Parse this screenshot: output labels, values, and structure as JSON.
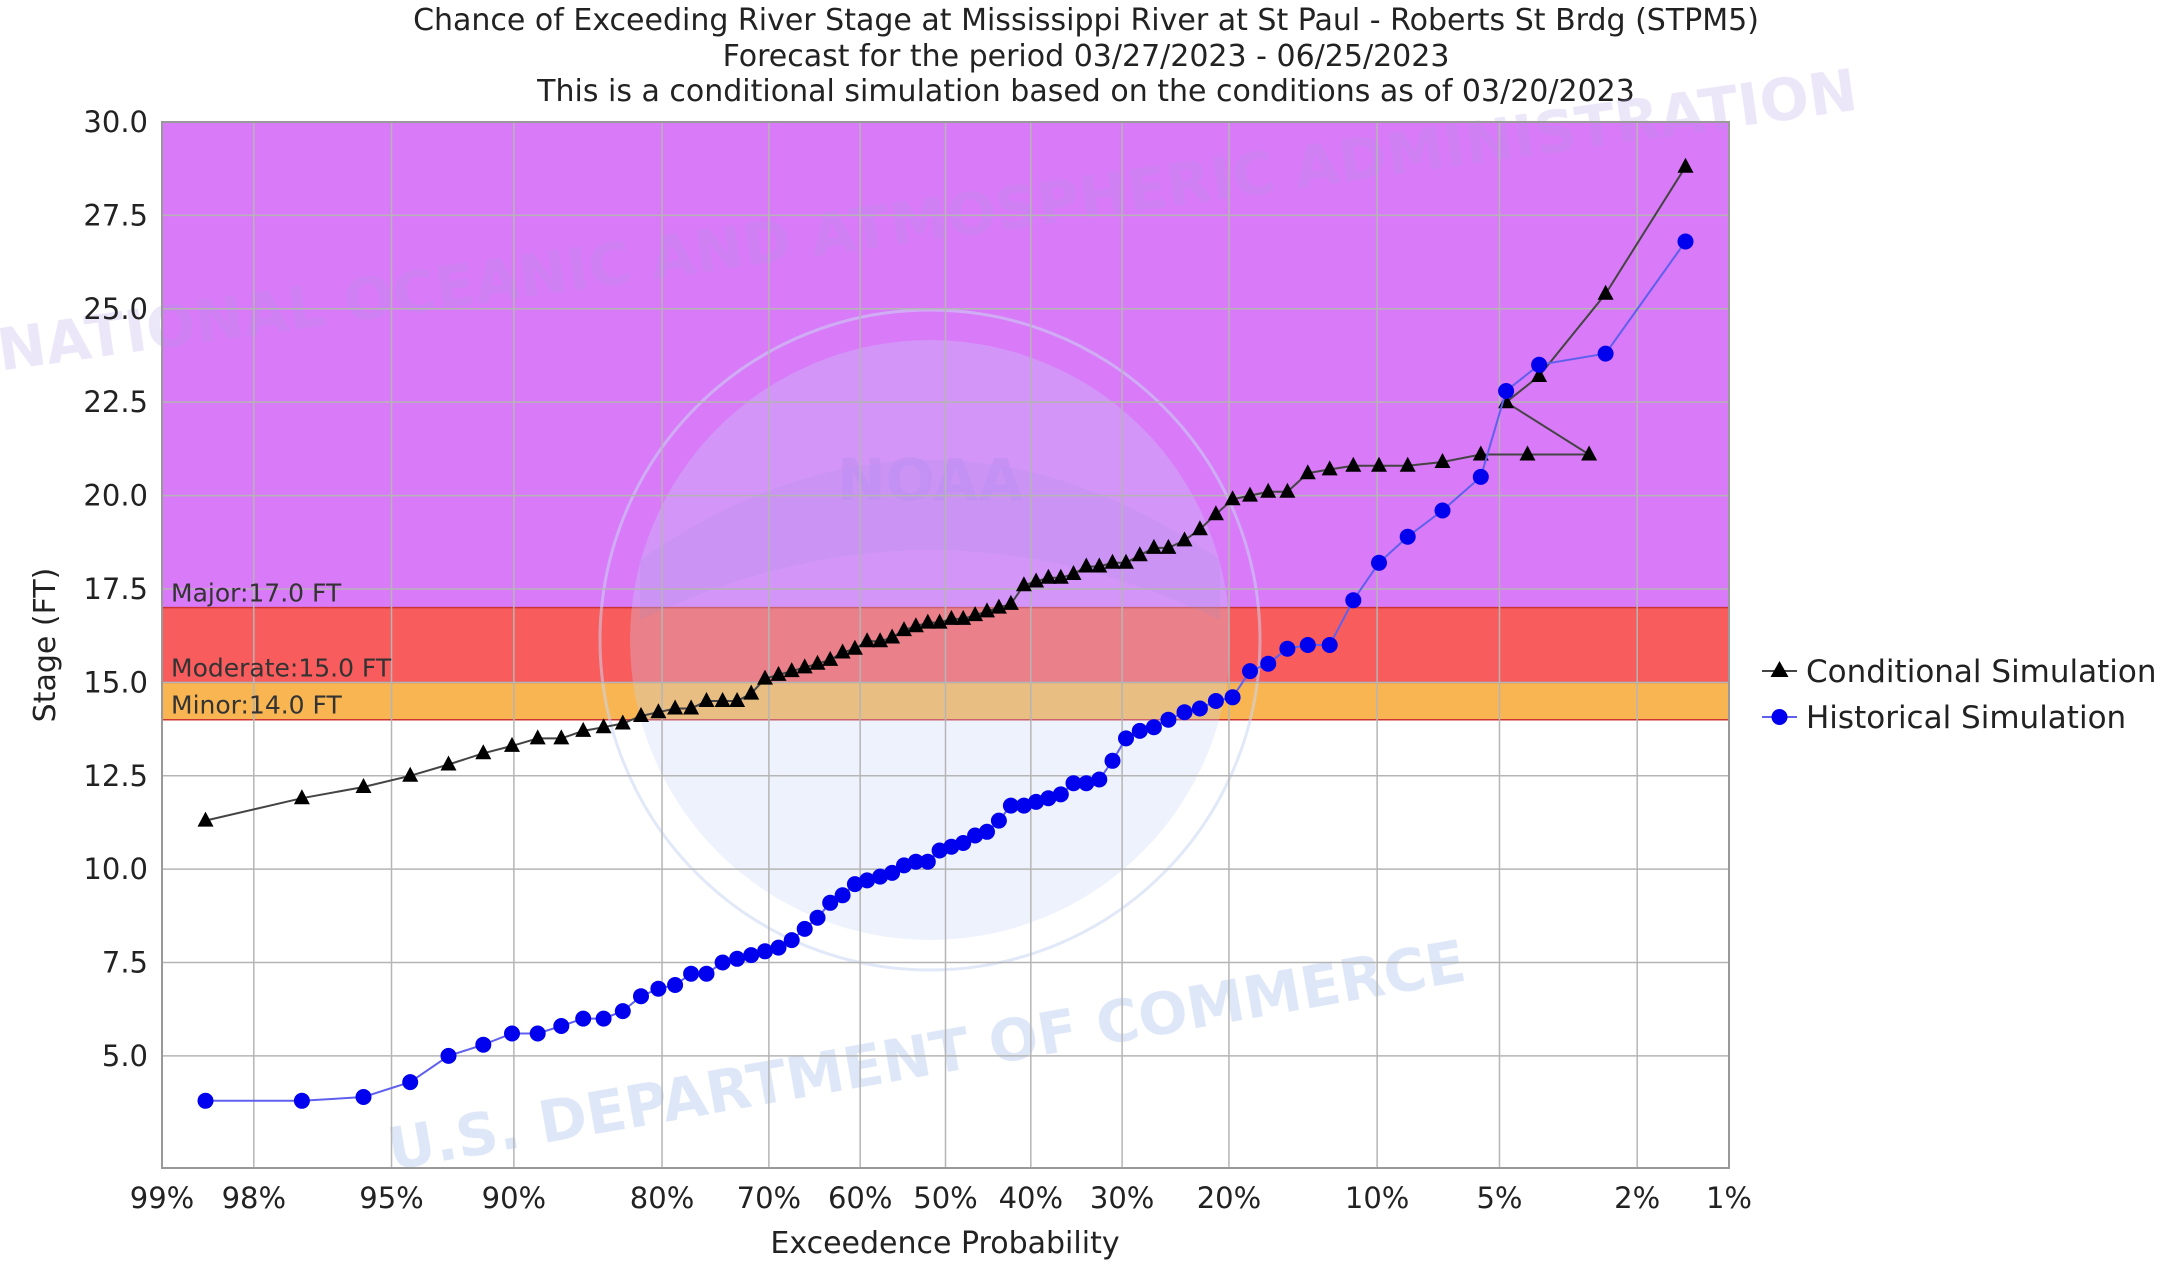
{
  "titles": [
    "Chance of Exceeding River Stage at Mississippi River at St Paul - Roberts St Brdg (STPM5)",
    "Forecast for the period 03/27/2023 - 06/25/2023",
    "This is a conditional simulation based on the conditions as of 03/20/2023"
  ],
  "watermark": {
    "ring_text_top": "NATIONAL OCEANIC AND ATMOSPHERIC ADMINISTRATION",
    "ring_text_bottom": "U.S. DEPARTMENT OF COMMERCE",
    "logo_text": "NOAA"
  },
  "chart_data": {
    "type": "line",
    "title": "Chance of Exceeding River Stage at Mississippi River at St Paul - Roberts St Brdg (STPM5)",
    "subtitle": [
      "Forecast for the period 03/27/2023 - 06/25/2023",
      "This is a conditional simulation based on the conditions as of 03/20/2023"
    ],
    "xlabel": "Exceedence Probability",
    "ylabel": "Stage (FT)",
    "x_scale": "normal-probability (percent, decreasing left to right)",
    "xlim": [
      99,
      1
    ],
    "ylim": [
      2.0,
      30.0
    ],
    "grid": true,
    "legend_position": "right",
    "x_ticks": [
      {
        "value": 99,
        "label": "99%"
      },
      {
        "value": 98,
        "label": "98%"
      },
      {
        "value": 95,
        "label": "95%"
      },
      {
        "value": 90,
        "label": "90%"
      },
      {
        "value": 80,
        "label": "80%"
      },
      {
        "value": 70,
        "label": "70%"
      },
      {
        "value": 60,
        "label": "60%"
      },
      {
        "value": 50,
        "label": "50%"
      },
      {
        "value": 40,
        "label": "40%"
      },
      {
        "value": 30,
        "label": "30%"
      },
      {
        "value": 20,
        "label": "20%"
      },
      {
        "value": 10,
        "label": "10%"
      },
      {
        "value": 5,
        "label": "5%"
      },
      {
        "value": 2,
        "label": "2%"
      },
      {
        "value": 1,
        "label": "1%"
      }
    ],
    "y_ticks": [
      {
        "value": 5.0,
        "label": "5.0"
      },
      {
        "value": 7.5,
        "label": "7.5"
      },
      {
        "value": 10.0,
        "label": "10.0"
      },
      {
        "value": 12.5,
        "label": "12.5"
      },
      {
        "value": 15.0,
        "label": "15.0"
      },
      {
        "value": 17.5,
        "label": "17.5"
      },
      {
        "value": 20.0,
        "label": "20.0"
      },
      {
        "value": 22.5,
        "label": "22.5"
      },
      {
        "value": 25.0,
        "label": "25.0"
      },
      {
        "value": 27.5,
        "label": "27.5"
      },
      {
        "value": 30.0,
        "label": "30.0"
      }
    ],
    "flood_zones": [
      {
        "name": "Minor",
        "label": "Minor:14.0 FT",
        "from": 14.0,
        "to": 15.0,
        "color": "#f8b552"
      },
      {
        "name": "Moderate",
        "label": "Moderate:15.0 FT",
        "from": 15.0,
        "to": 17.0,
        "color": "#f95c5c"
      },
      {
        "name": "Major",
        "label": "Major:17.0 FT",
        "from": 17.0,
        "to": 30.0,
        "color": "#d97af8"
      }
    ],
    "series": [
      {
        "name": "Conditional Simulation",
        "marker": "triangle",
        "color": "#000000",
        "line_color": "#444444",
        "points": [
          [
            98.6,
            11.3
          ],
          [
            97.2,
            11.9
          ],
          [
            95.8,
            12.2
          ],
          [
            94.4,
            12.5
          ],
          [
            93.0,
            12.8
          ],
          [
            91.5,
            13.1
          ],
          [
            90.1,
            13.3
          ],
          [
            88.7,
            13.5
          ],
          [
            87.3,
            13.5
          ],
          [
            85.9,
            13.7
          ],
          [
            84.5,
            13.8
          ],
          [
            83.1,
            13.9
          ],
          [
            81.7,
            14.1
          ],
          [
            80.3,
            14.2
          ],
          [
            78.9,
            14.3
          ],
          [
            77.5,
            14.3
          ],
          [
            76.1,
            14.5
          ],
          [
            74.6,
            14.5
          ],
          [
            73.2,
            14.5
          ],
          [
            71.8,
            14.7
          ],
          [
            70.4,
            15.1
          ],
          [
            69.0,
            15.2
          ],
          [
            67.6,
            15.3
          ],
          [
            66.2,
            15.4
          ],
          [
            64.8,
            15.5
          ],
          [
            63.4,
            15.6
          ],
          [
            62.0,
            15.8
          ],
          [
            60.6,
            15.9
          ],
          [
            59.2,
            16.1
          ],
          [
            57.7,
            16.1
          ],
          [
            56.3,
            16.2
          ],
          [
            54.9,
            16.4
          ],
          [
            53.5,
            16.5
          ],
          [
            52.1,
            16.6
          ],
          [
            50.7,
            16.6
          ],
          [
            49.3,
            16.7
          ],
          [
            47.9,
            16.7
          ],
          [
            46.5,
            16.8
          ],
          [
            45.1,
            16.9
          ],
          [
            43.7,
            17.0
          ],
          [
            42.3,
            17.1
          ],
          [
            40.8,
            17.6
          ],
          [
            39.4,
            17.7
          ],
          [
            38.0,
            17.8
          ],
          [
            36.6,
            17.8
          ],
          [
            35.2,
            17.9
          ],
          [
            33.8,
            18.1
          ],
          [
            32.4,
            18.1
          ],
          [
            31.0,
            18.2
          ],
          [
            29.6,
            18.2
          ],
          [
            28.2,
            18.4
          ],
          [
            26.8,
            18.6
          ],
          [
            25.4,
            18.6
          ],
          [
            23.9,
            18.8
          ],
          [
            22.5,
            19.1
          ],
          [
            21.1,
            19.5
          ],
          [
            19.7,
            19.9
          ],
          [
            18.3,
            20.0
          ],
          [
            16.9,
            20.1
          ],
          [
            15.5,
            20.1
          ],
          [
            14.1,
            20.6
          ],
          [
            12.7,
            20.7
          ],
          [
            11.3,
            20.8
          ],
          [
            9.9,
            20.8
          ],
          [
            8.5,
            20.8
          ],
          [
            7.0,
            20.9
          ],
          [
            5.6,
            21.1
          ],
          [
            4.2,
            21.1
          ],
          [
            2.8,
            21.1
          ],
          [
            4.8,
            22.5
          ],
          [
            3.9,
            23.2
          ],
          [
            2.5,
            25.4
          ],
          [
            1.4,
            28.8
          ]
        ]
      },
      {
        "name": "Historical Simulation",
        "marker": "circle",
        "color": "#0000ee",
        "line_color": "#6060ee",
        "points": [
          [
            98.6,
            3.8
          ],
          [
            97.2,
            3.8
          ],
          [
            95.8,
            3.9
          ],
          [
            94.4,
            4.3
          ],
          [
            93.0,
            5.0
          ],
          [
            91.5,
            5.3
          ],
          [
            90.1,
            5.6
          ],
          [
            88.7,
            5.6
          ],
          [
            87.3,
            5.8
          ],
          [
            85.9,
            6.0
          ],
          [
            84.5,
            6.0
          ],
          [
            83.1,
            6.2
          ],
          [
            81.7,
            6.6
          ],
          [
            80.3,
            6.8
          ],
          [
            78.9,
            6.9
          ],
          [
            77.5,
            7.2
          ],
          [
            76.1,
            7.2
          ],
          [
            74.6,
            7.5
          ],
          [
            73.2,
            7.6
          ],
          [
            71.8,
            7.7
          ],
          [
            70.4,
            7.8
          ],
          [
            69.0,
            7.9
          ],
          [
            67.6,
            8.1
          ],
          [
            66.2,
            8.4
          ],
          [
            64.8,
            8.7
          ],
          [
            63.4,
            9.1
          ],
          [
            62.0,
            9.3
          ],
          [
            60.6,
            9.6
          ],
          [
            59.2,
            9.7
          ],
          [
            57.7,
            9.8
          ],
          [
            56.3,
            9.9
          ],
          [
            54.9,
            10.1
          ],
          [
            53.5,
            10.2
          ],
          [
            52.1,
            10.2
          ],
          [
            50.7,
            10.5
          ],
          [
            49.3,
            10.6
          ],
          [
            47.9,
            10.7
          ],
          [
            46.5,
            10.9
          ],
          [
            45.1,
            11.0
          ],
          [
            43.7,
            11.3
          ],
          [
            42.3,
            11.7
          ],
          [
            40.8,
            11.7
          ],
          [
            39.4,
            11.8
          ],
          [
            38.0,
            11.9
          ],
          [
            36.6,
            12.0
          ],
          [
            35.2,
            12.3
          ],
          [
            33.8,
            12.3
          ],
          [
            32.4,
            12.4
          ],
          [
            31.0,
            12.9
          ],
          [
            29.6,
            13.5
          ],
          [
            28.2,
            13.7
          ],
          [
            26.8,
            13.8
          ],
          [
            25.4,
            14.0
          ],
          [
            23.9,
            14.2
          ],
          [
            22.5,
            14.3
          ],
          [
            21.1,
            14.5
          ],
          [
            19.7,
            14.6
          ],
          [
            18.3,
            15.3
          ],
          [
            16.9,
            15.5
          ],
          [
            15.5,
            15.9
          ],
          [
            14.1,
            16.0
          ],
          [
            12.7,
            16.0
          ],
          [
            11.3,
            17.2
          ],
          [
            9.9,
            18.2
          ],
          [
            8.5,
            18.9
          ],
          [
            7.0,
            19.6
          ],
          [
            5.6,
            20.5
          ],
          [
            4.8,
            22.8
          ],
          [
            3.9,
            23.5
          ],
          [
            2.5,
            23.8
          ],
          [
            1.4,
            26.8
          ]
        ]
      }
    ]
  },
  "colors": {
    "major": "#d97af8",
    "moderate": "#f95c5c",
    "minor": "#f8b552",
    "grid": "#b5b5b5",
    "frame": "#999999",
    "watermark": "#b6c9ee"
  }
}
